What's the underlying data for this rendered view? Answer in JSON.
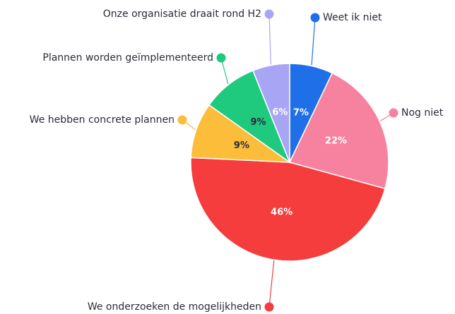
{
  "chart_data": {
    "type": "pie",
    "categories": [
      "Weet ik niet",
      "Nog niet",
      "We onderzoeken de mogelijkheden",
      "We hebben concrete plannen",
      "Plannen worden geïmplementeerd",
      "Onze organisatie draait rond H2"
    ],
    "values": [
      7,
      22,
      46,
      9,
      9,
      6
    ],
    "value_labels": [
      "7%",
      "22%",
      "46%",
      "9%",
      "9%",
      "6%"
    ],
    "colors": [
      "#1f6fe8",
      "#f7829f",
      "#f53d3d",
      "#fbbd3a",
      "#1fc97d",
      "#a9a5f5"
    ]
  }
}
